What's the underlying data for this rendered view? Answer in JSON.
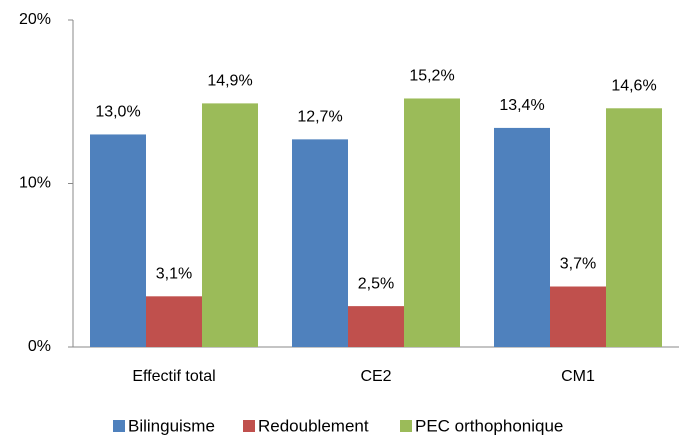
{
  "chart_data": {
    "type": "bar",
    "categories": [
      "Effectif total",
      "CE2",
      "CM1"
    ],
    "series": [
      {
        "name": "Bilinguisme",
        "color": "#4f81bd",
        "values": [
          13.0,
          12.7,
          13.4
        ],
        "value_labels": [
          "13,0%",
          "12,7%",
          "13,4%"
        ]
      },
      {
        "name": "Redoublement",
        "color": "#c0504d",
        "values": [
          3.1,
          2.5,
          3.7
        ],
        "value_labels": [
          "3,1%",
          "2,5%",
          "3,7%"
        ]
      },
      {
        "name": "PEC orthophonique",
        "color": "#9bbb59",
        "values": [
          14.9,
          15.2,
          14.6
        ],
        "value_labels": [
          "14,9%",
          "15,2%",
          "14,6%"
        ]
      }
    ],
    "ylim": [
      0,
      20
    ],
    "yticks": [
      {
        "value": 0,
        "label": "0%"
      },
      {
        "value": 10,
        "label": "10%"
      },
      {
        "value": 20,
        "label": "20%"
      }
    ],
    "grid": false,
    "legend": "bottom"
  }
}
